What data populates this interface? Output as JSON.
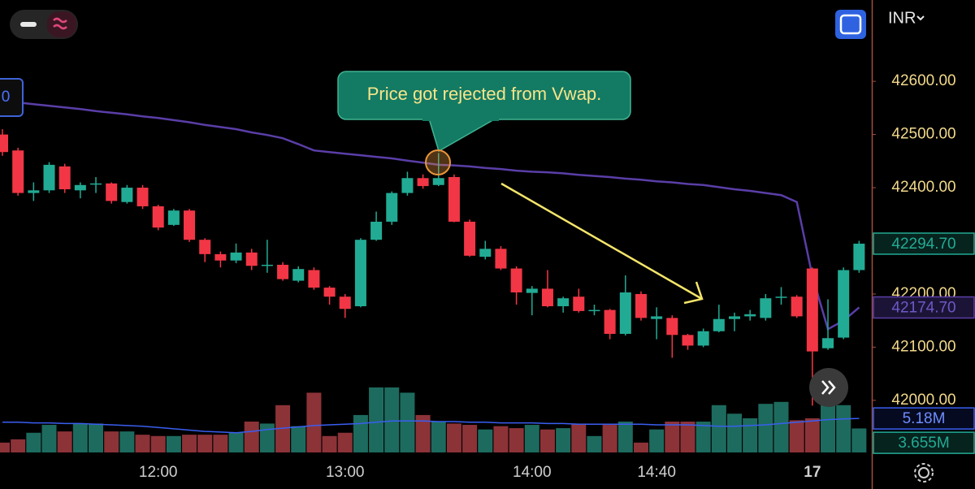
{
  "chart_data": {
    "type": "candlestick",
    "currency": "INR",
    "annotation": "Price got rejected from Vwap.",
    "cropped_badge": "0",
    "categories": [
      null,
      null,
      null,
      null,
      null,
      null,
      null,
      null,
      null,
      null,
      "12:00",
      null,
      null,
      null,
      null,
      null,
      null,
      null,
      null,
      null,
      null,
      null,
      "13:00",
      null,
      null,
      null,
      null,
      null,
      null,
      null,
      null,
      null,
      null,
      null,
      "14:00",
      null,
      null,
      null,
      null,
      null,
      null,
      null,
      "14:40",
      null,
      null,
      null,
      null,
      null,
      null,
      null,
      null,
      null,
      "17",
      null,
      null,
      null
    ],
    "ylim": [
      41902,
      42753
    ],
    "yticks": [
      {
        "value": 42000,
        "label": "42000.00"
      },
      {
        "value": 42100,
        "label": "42100.00"
      },
      {
        "value": 42200,
        "label": "42200.00"
      },
      {
        "value": 42400,
        "label": "42400.00"
      },
      {
        "value": 42500,
        "label": "42500.00"
      },
      {
        "value": 42600,
        "label": "42600.00"
      }
    ],
    "grid": false,
    "up_color": "#22ab94",
    "down_color": "#f23645",
    "open": [
      42500,
      42470,
      42390,
      42395,
      42440,
      42395,
      42407,
      42408,
      42373,
      42400,
      42365,
      42330,
      42357,
      42302,
      42275,
      42263,
      42278,
      42253,
      42255,
      42225,
      42245,
      42212,
      42195,
      42177,
      42302,
      42336,
      42390,
      42418,
      42405,
      42420,
      42336,
      42270,
      42285,
      42248,
      42202,
      42210,
      42177,
      42195,
      42168,
      42170,
      42125,
      42200,
      42153,
      42155,
      42123,
      42103,
      42130,
      42153,
      42158,
      42155,
      42193,
      42195,
      42248,
      42098,
      42118,
      42245
    ],
    "high": [
      42510,
      42475,
      42410,
      42448,
      42445,
      42410,
      42420,
      42410,
      42405,
      42405,
      42368,
      42360,
      42360,
      42305,
      42280,
      42295,
      42285,
      42302,
      42260,
      42252,
      42250,
      42215,
      42200,
      42305,
      42355,
      42393,
      42430,
      42425,
      42465,
      42425,
      42340,
      42300,
      42290,
      42252,
      42215,
      42245,
      42195,
      42210,
      42180,
      42172,
      42235,
      42205,
      42175,
      42160,
      42125,
      42135,
      42180,
      42165,
      42170,
      42200,
      42213,
      42198,
      42250,
      42190,
      42250,
      42300
    ],
    "low": [
      42460,
      42385,
      42375,
      42390,
      42390,
      42380,
      42390,
      42370,
      42370,
      42360,
      42320,
      42328,
      42298,
      42260,
      42250,
      42258,
      42245,
      42240,
      42225,
      42222,
      42208,
      42180,
      42155,
      42175,
      42300,
      42330,
      42385,
      42398,
      42403,
      42335,
      42270,
      42265,
      42245,
      42180,
      42160,
      42175,
      42165,
      42165,
      42160,
      42115,
      42122,
      42150,
      42115,
      42080,
      42095,
      42100,
      42128,
      42130,
      42150,
      42150,
      42180,
      42155,
      41990,
      42095,
      42115,
      42240
    ],
    "close": [
      42467,
      42390,
      42395,
      42443,
      42397,
      42405,
      42408,
      42375,
      42400,
      42365,
      42325,
      42357,
      42302,
      42275,
      42263,
      42278,
      42253,
      42255,
      42228,
      42247,
      42212,
      42195,
      42172,
      42302,
      42336,
      42390,
      42418,
      42403,
      42418,
      42336,
      42272,
      42285,
      42248,
      42203,
      42210,
      42177,
      42192,
      42168,
      42170,
      42125,
      42203,
      42155,
      42158,
      42123,
      42103,
      42130,
      42153,
      42158,
      42162,
      42192,
      42195,
      42158,
      42092,
      42117,
      42245,
      42294.7
    ],
    "close_last_label": "42294.70",
    "vwap": {
      "color": "#5a3ea8",
      "values": [
        42563,
        42560,
        42557,
        42554,
        42551,
        42548,
        42544,
        42541,
        42538,
        42534,
        42531,
        42527,
        42523,
        42518,
        42514,
        42510,
        42504,
        42499,
        42493,
        42482,
        42470,
        42467,
        42464,
        42461,
        42458,
        42455,
        42451,
        42447,
        42443,
        42442,
        42440,
        42437,
        42435,
        42432,
        42430,
        42429,
        42427,
        42424,
        42422,
        42420,
        42417,
        42415,
        42412,
        42410,
        42407,
        42405,
        42401,
        42397,
        42394,
        42390,
        42386,
        42373,
        42234,
        42134,
        42150,
        42174.7
      ],
      "last_label": "42174.70"
    },
    "volume": {
      "ylim": [
        0,
        12
      ],
      "up_color": "#1d6b5e",
      "down_color": "#8c3338",
      "values": [
        1.5,
        2.0,
        3.0,
        4.2,
        3.2,
        4.4,
        4.4,
        3.2,
        3.2,
        2.7,
        2.5,
        2.5,
        2.7,
        2.7,
        2.7,
        3.0,
        4.7,
        4.4,
        7.2,
        4.0,
        9.1,
        2.5,
        3.0,
        5.7,
        9.9,
        9.9,
        9.1,
        5.7,
        4.7,
        4.4,
        4.2,
        3.5,
        4.0,
        3.7,
        4.2,
        3.5,
        3.7,
        4.4,
        2.5,
        4.2,
        4.7,
        1.5,
        3.5,
        4.7,
        4.7,
        4.7,
        7.2,
        5.9,
        5.2,
        7.4,
        7.7,
        4.9,
        5.2,
        7.2,
        7.2,
        3.655
      ],
      "last_label": "3.655M"
    },
    "volume_ma": {
      "color": "#3a5ef0",
      "values": [
        4.6,
        4.6,
        4.5,
        4.5,
        4.4,
        4.4,
        4.3,
        4.2,
        4.1,
        4.0,
        3.8,
        3.6,
        3.4,
        3.2,
        3.1,
        3.0,
        3.2,
        3.5,
        3.7,
        3.9,
        4.1,
        4.2,
        4.3,
        4.4,
        4.6,
        4.8,
        4.8,
        4.8,
        4.7,
        4.7,
        4.6,
        4.6,
        4.5,
        4.5,
        4.5,
        4.4,
        4.4,
        4.3,
        4.3,
        4.3,
        4.3,
        4.3,
        4.2,
        4.2,
        4.2,
        4.1,
        4.0,
        4.0,
        4.1,
        4.2,
        4.4,
        4.6,
        4.8,
        5.0,
        5.1,
        5.18
      ],
      "last_label": "5.18M"
    }
  }
}
